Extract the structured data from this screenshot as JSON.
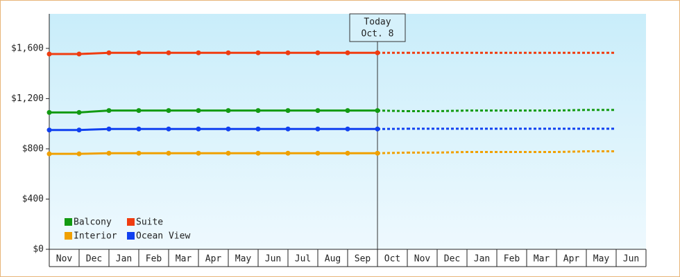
{
  "chart_data": {
    "type": "line",
    "categories": [
      "Nov",
      "Dec",
      "Jan",
      "Feb",
      "Mar",
      "Apr",
      "May",
      "Jun",
      "Jul",
      "Aug",
      "Sep",
      "Oct",
      "Nov",
      "Dec",
      "Jan",
      "Feb",
      "Mar",
      "Apr",
      "May",
      "Jun"
    ],
    "ylim": [
      0,
      1875
    ],
    "yticks": [
      {
        "value": 0,
        "label": "$0"
      },
      {
        "value": 400,
        "label": "$400"
      },
      {
        "value": 800,
        "label": "$800"
      },
      {
        "value": 1200,
        "label": "$1,200"
      },
      {
        "value": 1600,
        "label": "$1,600"
      }
    ],
    "annotation": {
      "title": "Today",
      "date": "Oct. 8"
    },
    "series": [
      {
        "name": "Balcony",
        "color": "#129a12",
        "values": [
          1090,
          1090,
          1105,
          1105,
          1105,
          1105,
          1105,
          1105,
          1105,
          1105,
          1105,
          1105,
          null,
          null,
          null,
          null,
          null,
          null,
          null,
          null
        ],
        "forecast_values": [
          null,
          null,
          null,
          null,
          null,
          null,
          null,
          null,
          null,
          null,
          null,
          null,
          1100,
          1100,
          1105,
          1105,
          1105,
          1105,
          1110,
          1110
        ]
      },
      {
        "name": "Suite",
        "color": "#f03c10",
        "values": [
          1555,
          1555,
          1565,
          1565,
          1565,
          1565,
          1565,
          1565,
          1565,
          1565,
          1565,
          1565,
          null,
          null,
          null,
          null,
          null,
          null,
          null,
          null
        ],
        "forecast_values": [
          null,
          null,
          null,
          null,
          null,
          null,
          null,
          null,
          null,
          null,
          null,
          null,
          1565,
          1565,
          1565,
          1565,
          1565,
          1565,
          1565,
          1565
        ]
      },
      {
        "name": "Interior",
        "color": "#f0a000",
        "values": [
          760,
          760,
          765,
          765,
          765,
          765,
          765,
          765,
          765,
          765,
          765,
          765,
          null,
          null,
          null,
          null,
          null,
          null,
          null,
          null
        ],
        "forecast_values": [
          null,
          null,
          null,
          null,
          null,
          null,
          null,
          null,
          null,
          null,
          null,
          null,
          770,
          770,
          775,
          775,
          775,
          775,
          780,
          780
        ]
      },
      {
        "name": "Ocean View",
        "color": "#1040f0",
        "values": [
          950,
          950,
          958,
          958,
          958,
          958,
          958,
          958,
          958,
          958,
          958,
          958,
          null,
          null,
          null,
          null,
          null,
          null,
          null,
          null
        ],
        "forecast_values": [
          null,
          null,
          null,
          null,
          null,
          null,
          null,
          null,
          null,
          null,
          null,
          null,
          960,
          960,
          960,
          960,
          960,
          960,
          960,
          960
        ]
      }
    ]
  }
}
